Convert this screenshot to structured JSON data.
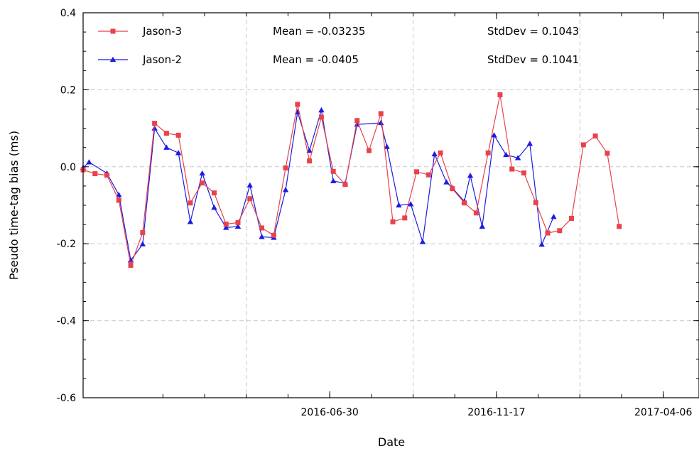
{
  "chart_data": {
    "type": "line",
    "title": "",
    "xlabel": "Date",
    "ylabel": "Pseudo time-tag bias (ms)",
    "x_ticks": [
      "2016-06-30",
      "2016-11-17",
      "2017-04-06"
    ],
    "y_ticks": [
      "0.4",
      "0.2",
      "0.0",
      "-0.2",
      "-0.4",
      "-0.6"
    ],
    "xlim": [
      "2015-12-06",
      "2017-05-06"
    ],
    "ylim": [
      -0.6,
      0.4
    ],
    "grid": true,
    "legend_position": "top-left",
    "series": [
      {
        "name": "Jason-3",
        "color": "#e8424a",
        "marker": "square",
        "stats": {
          "mean": "Mean = -0.03235",
          "std": "StdDev = 0.1043"
        },
        "points": [
          [
            "2015-12-06",
            -0.008
          ],
          [
            "2015-12-16",
            -0.018
          ],
          [
            "2015-12-26",
            -0.022
          ],
          [
            "2016-01-05",
            -0.087
          ],
          [
            "2016-01-15",
            -0.256
          ],
          [
            "2016-01-25",
            -0.171
          ],
          [
            "2016-02-04",
            0.113
          ],
          [
            "2016-02-14",
            0.087
          ],
          [
            "2016-02-24",
            0.082
          ],
          [
            "2016-03-05",
            -0.094
          ],
          [
            "2016-03-15",
            -0.042
          ],
          [
            "2016-03-25",
            -0.068
          ],
          [
            "2016-04-04",
            -0.149
          ],
          [
            "2016-04-14",
            -0.145
          ],
          [
            "2016-04-24",
            -0.083
          ],
          [
            "2016-05-04",
            -0.159
          ],
          [
            "2016-05-14",
            -0.178
          ],
          [
            "2016-05-24",
            -0.003
          ],
          [
            "2016-06-03",
            0.162
          ],
          [
            "2016-06-13",
            0.015
          ],
          [
            "2016-06-23",
            0.129
          ],
          [
            "2016-07-03",
            -0.012
          ],
          [
            "2016-07-13",
            -0.046
          ],
          [
            "2016-07-23",
            0.12
          ],
          [
            "2016-08-02",
            0.042
          ],
          [
            "2016-08-12",
            0.138
          ],
          [
            "2016-08-22",
            -0.143
          ],
          [
            "2016-09-01",
            -0.133
          ],
          [
            "2016-09-11",
            -0.013
          ],
          [
            "2016-09-21",
            -0.021
          ],
          [
            "2016-10-01",
            0.036
          ],
          [
            "2016-10-11",
            -0.057
          ],
          [
            "2016-10-21",
            -0.094
          ],
          [
            "2016-10-31",
            -0.12
          ],
          [
            "2016-11-10",
            0.036
          ],
          [
            "2016-11-20",
            0.187
          ],
          [
            "2016-11-30",
            -0.006
          ],
          [
            "2016-12-10",
            -0.016
          ],
          [
            "2016-12-20",
            -0.093
          ],
          [
            "2016-12-30",
            -0.172
          ],
          [
            "2017-01-09",
            -0.166
          ],
          [
            "2017-01-19",
            -0.134
          ],
          [
            "2017-01-29",
            0.057
          ],
          [
            "2017-02-08",
            0.08
          ],
          [
            "2017-02-18",
            0.035
          ],
          [
            "2017-02-28",
            -0.155
          ]
        ]
      },
      {
        "name": "Jason-2",
        "color": "#1c1ce0",
        "marker": "triangle",
        "stats": {
          "mean": "Mean = -0.0405",
          "std": "StdDev = 0.1041"
        },
        "points": [
          [
            "2015-12-06",
            -0.002
          ],
          [
            "2015-12-11",
            0.012
          ],
          [
            "2015-12-26",
            -0.017
          ],
          [
            "2016-01-05",
            -0.073
          ],
          [
            "2016-01-15",
            -0.243
          ],
          [
            "2016-01-25",
            -0.201
          ],
          [
            "2016-02-04",
            0.1
          ],
          [
            "2016-02-14",
            0.05
          ],
          [
            "2016-02-24",
            0.036
          ],
          [
            "2016-03-05",
            -0.143
          ],
          [
            "2016-03-15",
            -0.017
          ],
          [
            "2016-03-25",
            -0.106
          ],
          [
            "2016-04-04",
            -0.158
          ],
          [
            "2016-04-14",
            -0.155
          ],
          [
            "2016-04-24",
            -0.048
          ],
          [
            "2016-05-04",
            -0.182
          ],
          [
            "2016-05-14",
            -0.184
          ],
          [
            "2016-05-24",
            -0.06
          ],
          [
            "2016-06-03",
            0.142
          ],
          [
            "2016-06-13",
            0.042
          ],
          [
            "2016-06-23",
            0.147
          ],
          [
            "2016-07-03",
            -0.037
          ],
          [
            "2016-07-13",
            -0.043
          ],
          [
            "2016-07-23",
            0.11
          ],
          [
            "2016-08-12",
            0.114
          ],
          [
            "2016-08-17",
            0.052
          ],
          [
            "2016-08-27",
            -0.1
          ],
          [
            "2016-09-06",
            -0.097
          ],
          [
            "2016-09-16",
            -0.195
          ],
          [
            "2016-09-26",
            0.033
          ],
          [
            "2016-10-06",
            -0.04
          ],
          [
            "2016-10-11",
            -0.055
          ],
          [
            "2016-10-21",
            -0.09
          ],
          [
            "2016-10-26",
            -0.023
          ],
          [
            "2016-11-05",
            -0.155
          ],
          [
            "2016-11-15",
            0.082
          ],
          [
            "2016-11-25",
            0.031
          ],
          [
            "2016-12-05",
            0.023
          ],
          [
            "2016-12-15",
            0.06
          ],
          [
            "2016-12-25",
            -0.202
          ],
          [
            "2017-01-04",
            -0.13
          ]
        ]
      }
    ]
  }
}
